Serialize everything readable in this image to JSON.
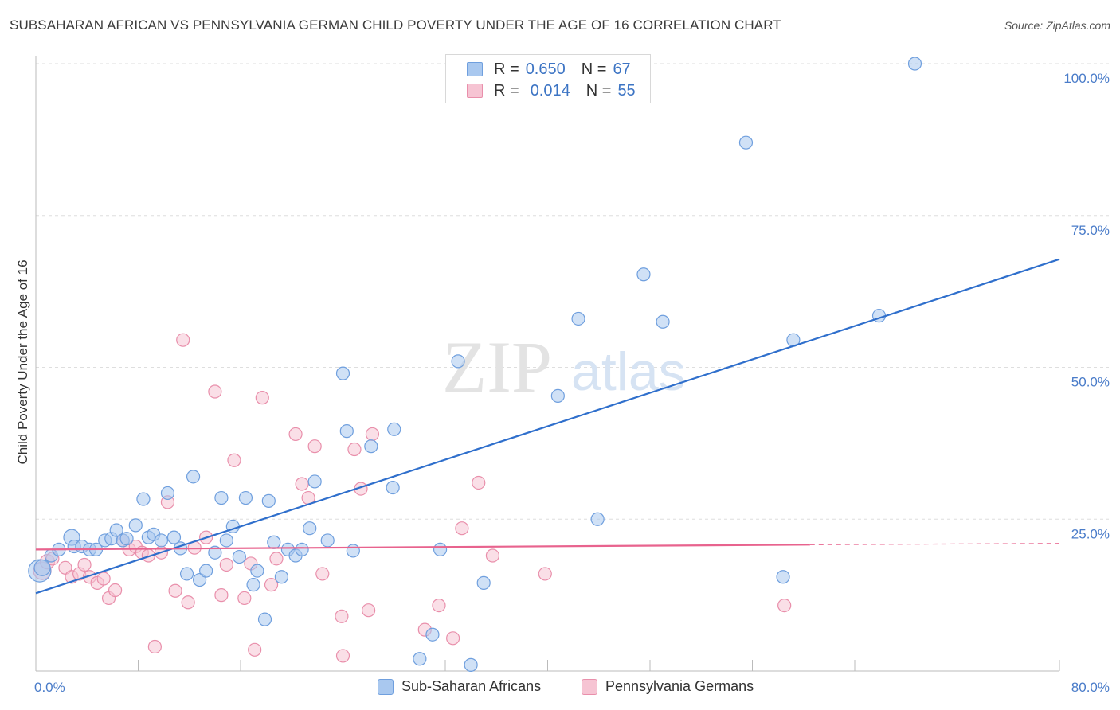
{
  "title": "SUBSAHARAN AFRICAN VS PENNSYLVANIA GERMAN CHILD POVERTY UNDER THE AGE OF 16 CORRELATION CHART",
  "source": "Source: ZipAtlas.com",
  "watermark": {
    "zip": "ZIP",
    "atlas": "atlas"
  },
  "legend": {
    "blue": {
      "r_label": "R =",
      "r_value": "0.650",
      "n_label": "N =",
      "n_value": "67"
    },
    "pink": {
      "r_label": "R =",
      "r_value": "0.014",
      "n_label": "N =",
      "n_value": "55"
    }
  },
  "bottom_legend": {
    "blue": "Sub-Saharan Africans",
    "pink": "Pennsylvania Germans"
  },
  "colors": {
    "blue_fill": "#a9c8ef",
    "blue_stroke": "#6f9fde",
    "blue_line": "#2f6fcc",
    "pink_fill": "#f6c4d3",
    "pink_stroke": "#e98fab",
    "pink_line": "#e8638e",
    "axis_text": "#4a7cc9",
    "grid": "#dedede"
  },
  "chart_data": {
    "type": "scatter",
    "title": "SUBSAHARAN AFRICAN VS PENNSYLVANIA GERMAN CHILD POVERTY UNDER THE AGE OF 16 CORRELATION CHART",
    "xlabel": "",
    "ylabel": "Child Poverty Under the Age of 16",
    "xlim": [
      0,
      80
    ],
    "ylim": [
      0,
      102
    ],
    "x_tick_labels": [
      "0.0%",
      "80.0%"
    ],
    "y_ticks": [
      25,
      50,
      75,
      100
    ],
    "y_tick_labels": [
      "25.0%",
      "50.0%",
      "75.0%",
      "100.0%"
    ],
    "legend_position": "top-center",
    "series": [
      {
        "name": "Sub-Saharan Africans",
        "color": "#6f9fde",
        "trend": {
          "x": [
            0,
            80
          ],
          "y": [
            12.8,
            67.8
          ]
        },
        "points": [
          [
            0.3,
            16.5,
            14
          ],
          [
            0.5,
            17.0,
            10
          ],
          [
            1.2,
            19.0,
            8
          ],
          [
            1.8,
            20.0,
            8
          ],
          [
            2.8,
            22.0,
            10
          ],
          [
            3.0,
            20.5,
            8
          ],
          [
            3.6,
            20.5,
            8
          ],
          [
            4.2,
            20.0,
            8
          ],
          [
            4.7,
            20.0,
            8
          ],
          [
            5.4,
            21.5,
            8
          ],
          [
            5.9,
            21.8,
            8
          ],
          [
            6.3,
            23.2,
            8
          ],
          [
            6.8,
            21.5,
            8
          ],
          [
            7.1,
            21.8,
            8
          ],
          [
            7.8,
            24.0,
            8
          ],
          [
            8.4,
            28.3,
            8
          ],
          [
            8.8,
            22.0,
            8
          ],
          [
            9.2,
            22.5,
            8
          ],
          [
            9.8,
            21.5,
            8
          ],
          [
            10.3,
            29.3,
            8
          ],
          [
            10.8,
            22.0,
            8
          ],
          [
            11.3,
            20.2,
            8
          ],
          [
            11.8,
            16.0,
            8
          ],
          [
            12.3,
            32.0,
            8
          ],
          [
            12.8,
            15.0,
            8
          ],
          [
            13.3,
            16.5,
            8
          ],
          [
            14.0,
            19.5,
            8
          ],
          [
            14.5,
            28.5,
            8
          ],
          [
            14.9,
            21.5,
            8
          ],
          [
            15.4,
            23.8,
            8
          ],
          [
            15.9,
            18.8,
            8
          ],
          [
            16.4,
            28.5,
            8
          ],
          [
            17.0,
            14.2,
            8
          ],
          [
            17.3,
            16.5,
            8
          ],
          [
            17.9,
            8.5,
            8
          ],
          [
            18.2,
            28.0,
            8
          ],
          [
            18.6,
            21.2,
            8
          ],
          [
            19.2,
            15.5,
            8
          ],
          [
            19.7,
            20.0,
            8
          ],
          [
            20.3,
            19.0,
            8
          ],
          [
            20.8,
            20.0,
            8
          ],
          [
            21.4,
            23.5,
            8
          ],
          [
            21.8,
            31.2,
            8
          ],
          [
            22.8,
            21.5,
            8
          ],
          [
            24.0,
            49.0,
            8
          ],
          [
            24.3,
            39.5,
            8
          ],
          [
            24.8,
            19.8,
            8
          ],
          [
            26.2,
            37.0,
            8
          ],
          [
            28.0,
            39.8,
            8
          ],
          [
            27.9,
            30.2,
            8
          ],
          [
            30.0,
            2.0,
            8
          ],
          [
            31.0,
            6.0,
            8
          ],
          [
            31.6,
            20.0,
            8
          ],
          [
            33.0,
            51.0,
            8
          ],
          [
            34.0,
            1.0,
            8
          ],
          [
            35.0,
            14.5,
            8
          ],
          [
            40.8,
            45.3,
            8
          ],
          [
            42.4,
            58.0,
            8
          ],
          [
            43.9,
            25.0,
            8
          ],
          [
            47.5,
            65.3,
            8
          ],
          [
            49.0,
            57.5,
            8
          ],
          [
            55.5,
            87.0,
            8
          ],
          [
            58.4,
            15.5,
            8
          ],
          [
            59.2,
            54.5,
            8
          ],
          [
            65.9,
            58.5,
            8
          ],
          [
            68.7,
            100.0,
            8
          ]
        ]
      },
      {
        "name": "Pennsylvania Germans",
        "color": "#e98fab",
        "trend": {
          "x": [
            0,
            60.5
          ],
          "y": [
            20.0,
            20.8
          ],
          "dash_to": [
            80,
            21.0
          ]
        },
        "points": [
          [
            0.5,
            16.5,
            11
          ],
          [
            0.9,
            18.0,
            9
          ],
          [
            1.3,
            18.5,
            8
          ],
          [
            2.3,
            17.0,
            8
          ],
          [
            2.8,
            15.5,
            8
          ],
          [
            3.4,
            16.0,
            8
          ],
          [
            3.8,
            17.5,
            8
          ],
          [
            4.2,
            15.5,
            8
          ],
          [
            4.8,
            14.5,
            8
          ],
          [
            5.3,
            15.2,
            8
          ],
          [
            5.7,
            12.0,
            8
          ],
          [
            6.2,
            13.3,
            8
          ],
          [
            6.8,
            21.5,
            8
          ],
          [
            7.3,
            20.0,
            8
          ],
          [
            7.8,
            20.5,
            8
          ],
          [
            8.3,
            19.5,
            8
          ],
          [
            8.8,
            19.0,
            8
          ],
          [
            9.3,
            4.0,
            8
          ],
          [
            9.8,
            19.5,
            8
          ],
          [
            10.3,
            27.8,
            8
          ],
          [
            10.9,
            13.2,
            8
          ],
          [
            11.5,
            54.5,
            8
          ],
          [
            11.9,
            11.3,
            8
          ],
          [
            12.4,
            20.3,
            8
          ],
          [
            13.3,
            22.0,
            8
          ],
          [
            14.0,
            46.0,
            8
          ],
          [
            14.5,
            12.5,
            8
          ],
          [
            14.9,
            17.5,
            8
          ],
          [
            15.5,
            34.7,
            8
          ],
          [
            16.3,
            12.0,
            8
          ],
          [
            16.8,
            17.7,
            8
          ],
          [
            17.1,
            3.5,
            8
          ],
          [
            17.7,
            45.0,
            8
          ],
          [
            18.4,
            14.2,
            8
          ],
          [
            18.8,
            18.5,
            8
          ],
          [
            20.3,
            39.0,
            8
          ],
          [
            20.8,
            30.8,
            8
          ],
          [
            21.3,
            28.5,
            8
          ],
          [
            21.8,
            37.0,
            8
          ],
          [
            22.4,
            16.0,
            8
          ],
          [
            23.9,
            9.0,
            8
          ],
          [
            24.0,
            2.5,
            8
          ],
          [
            24.9,
            36.5,
            8
          ],
          [
            25.4,
            30.0,
            8
          ],
          [
            26.0,
            10.0,
            8
          ],
          [
            26.3,
            39.0,
            8
          ],
          [
            30.4,
            6.8,
            8
          ],
          [
            31.5,
            10.8,
            8
          ],
          [
            32.6,
            5.4,
            8
          ],
          [
            33.3,
            23.5,
            8
          ],
          [
            34.6,
            31.0,
            8
          ],
          [
            35.7,
            19.0,
            8
          ],
          [
            39.8,
            16.0,
            8
          ],
          [
            58.5,
            10.8,
            8
          ]
        ]
      }
    ]
  }
}
